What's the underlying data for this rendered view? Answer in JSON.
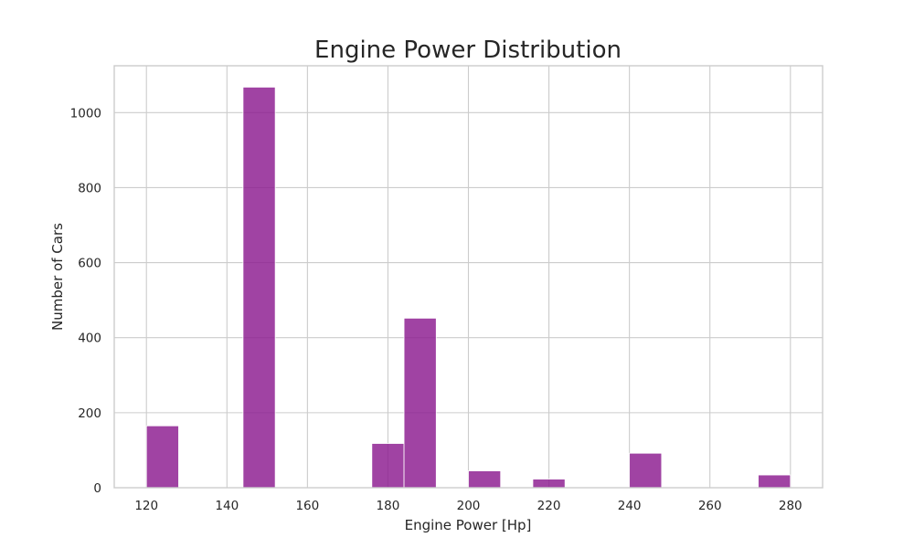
{
  "chart_data": {
    "type": "bar",
    "title": "Engine Power Distribution",
    "xlabel": "Engine Power [Hp]",
    "ylabel": "Number of Cars",
    "xlim": [
      112,
      288
    ],
    "ylim": [
      0,
      1125
    ],
    "xticks": [
      120,
      140,
      160,
      180,
      200,
      220,
      240,
      260,
      280
    ],
    "yticks": [
      0,
      200,
      400,
      600,
      800,
      1000
    ],
    "grid": true,
    "bar_color": "#8b1a8f",
    "bins": [
      {
        "x0": 120,
        "x1": 128,
        "count": 165
      },
      {
        "x0": 144,
        "x1": 152,
        "count": 1068
      },
      {
        "x0": 176,
        "x1": 184,
        "count": 118
      },
      {
        "x0": 184,
        "x1": 192,
        "count": 452
      },
      {
        "x0": 200,
        "x1": 208,
        "count": 45
      },
      {
        "x0": 216,
        "x1": 224,
        "count": 23
      },
      {
        "x0": 240,
        "x1": 248,
        "count": 92
      },
      {
        "x0": 272,
        "x1": 280,
        "count": 34
      }
    ]
  }
}
